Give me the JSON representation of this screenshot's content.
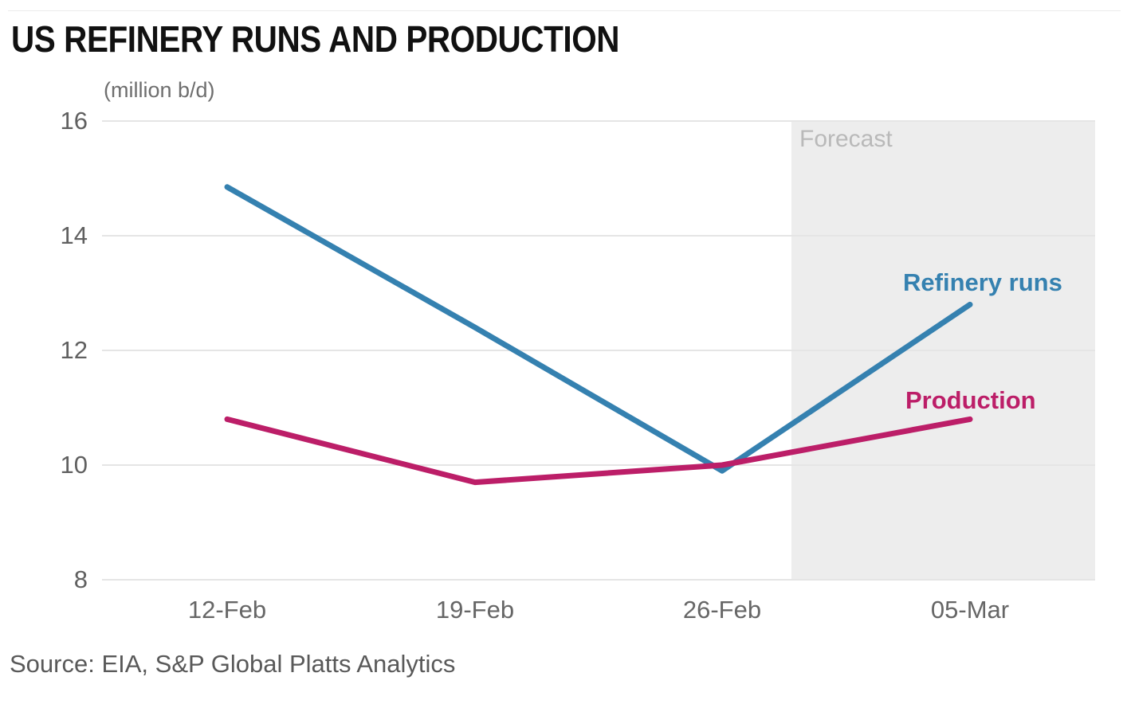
{
  "chart": {
    "title": "US REFINERY RUNS AND PRODUCTION",
    "unit_label": "(million b/d)",
    "forecast_label": "Forecast",
    "source": "Source: EIA, S&P Global Platts Analytics"
  },
  "chart_data": {
    "type": "line",
    "title": "US REFINERY RUNS AND PRODUCTION",
    "ylabel": "(million b/d)",
    "xlabel": "",
    "categories": [
      "12-Feb",
      "19-Feb",
      "26-Feb",
      "05-Mar"
    ],
    "series": [
      {
        "name": "Refinery runs",
        "color": "#3581b0",
        "values": [
          14.85,
          12.4,
          9.9,
          12.8
        ]
      },
      {
        "name": "Production",
        "color": "#bc1e68",
        "values": [
          10.8,
          9.7,
          10.0,
          10.8
        ]
      }
    ],
    "ylim": [
      8,
      16
    ],
    "yticks": [
      8,
      10,
      12,
      14,
      16
    ],
    "grid": "horizontal-only",
    "grid_color": "#e5e5e5",
    "legend_position": "labels-right-of-lines",
    "forecast_region": {
      "label": "Forecast",
      "covers": "from just after 26-Feb through 05-Mar",
      "fill_color": "#ededed",
      "label_color": "#b9b9b9"
    },
    "axis_text_color": "#606060",
    "source": "Source: EIA, S&P Global Platts Analytics"
  }
}
